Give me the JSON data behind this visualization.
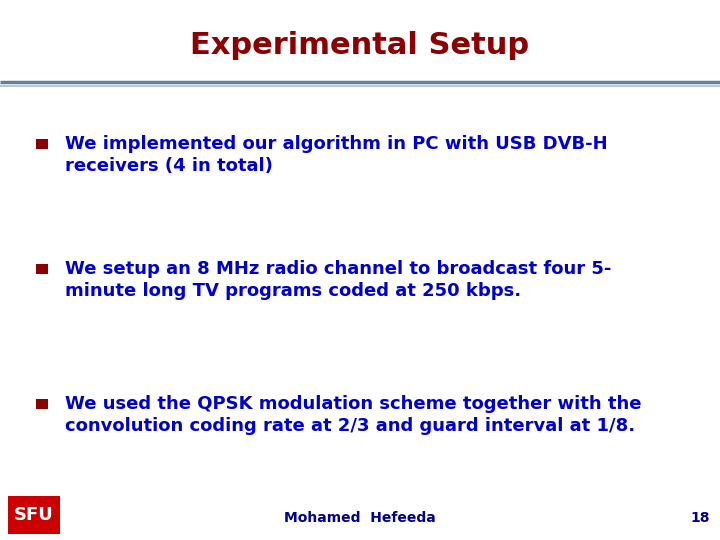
{
  "title": "Experimental Setup",
  "title_color": "#8B0000",
  "title_fontsize": 22,
  "background_color": "#FFFFFF",
  "bullet_color": "#8B0000",
  "text_color": "#0000CC",
  "text_fontsize": 13,
  "bullet_points": [
    [
      "We implemented our algorithm in PC with USB DVB-H",
      "receivers (4 in total)"
    ],
    [
      "We setup an 8 MHz radio channel to broadcast four 5-",
      "minute long TV programs coded at 250 kbps."
    ],
    [
      "We used the QPSK modulation scheme together with the",
      "convolution coding rate at 2/3 and guard interval at 1/8."
    ]
  ],
  "footer_text": "Mohamed  Hefeeda",
  "footer_page": "18",
  "footer_color": "#00008B",
  "footer_fontsize": 10,
  "sfu_box_color": "#CC0000",
  "sfu_text": "SFU",
  "sfu_text_color": "#FFFFFF",
  "line1_color": "#6080A0",
  "line2_color": "#B8C8D8"
}
